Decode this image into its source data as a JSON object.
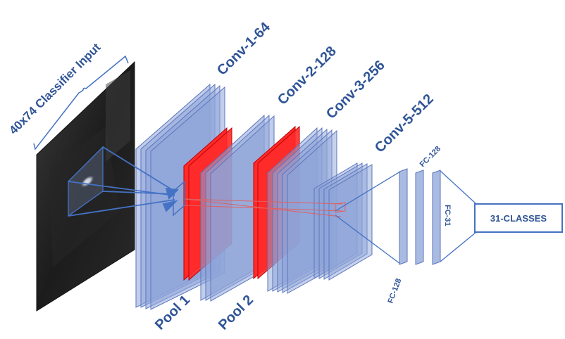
{
  "diagram": {
    "input_label": "40x74 Classifier Input",
    "conv_labels": [
      "Conv-1-64",
      "Conv-2-128",
      "Conv-3-256",
      "Conv-5-512"
    ],
    "pool_labels": [
      "Pool 1",
      "Pool 2"
    ],
    "fc_labels": [
      "FC-128",
      "FC-128",
      "FC-31"
    ],
    "output_label": "31-CLASSES",
    "colors": {
      "conv_fill": "#8ea4d8",
      "conv_stroke": "#5b76bd",
      "pool_fill": "#ff2a2a",
      "label": "#2f5496",
      "line": "#4472c4"
    }
  }
}
